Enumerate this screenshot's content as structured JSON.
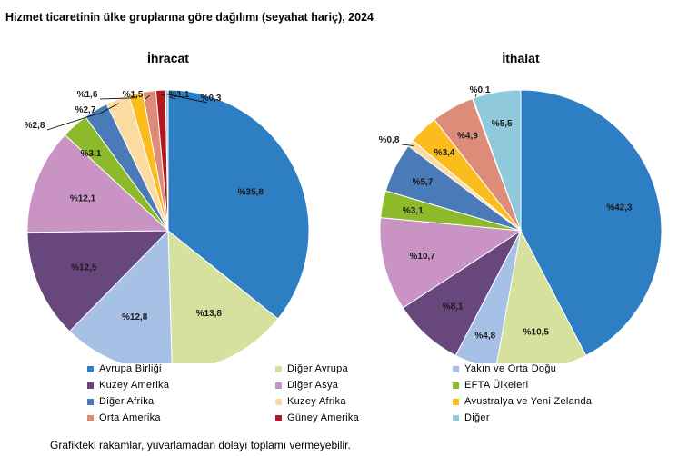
{
  "page_title": "Hizmet ticaretinin ülke gruplarına göre dağılımı (seyahat hariç), 2024",
  "footnote": "Grafikteki rakamlar, yuvarlamadan dolayı toplamı vermeyebilir.",
  "legend": [
    {
      "label": "Avrupa Birliği",
      "color": "#2e7ec4"
    },
    {
      "label": "Diğer Avrupa",
      "color": "#d5e19c"
    },
    {
      "label": "Yakın ve Orta Doğu",
      "color": "#a7c0e5"
    },
    {
      "label": "Kuzey Amerika",
      "color": "#67477c"
    },
    {
      "label": "Diğer Asya",
      "color": "#c994c4"
    },
    {
      "label": "EFTA Ülkeleri",
      "color": "#8dba2a"
    },
    {
      "label": "Diğer Afrika",
      "color": "#4b7ab8"
    },
    {
      "label": "Kuzey Afrika",
      "color": "#fbdba1"
    },
    {
      "label": "Avustralya ve Yeni Zelanda",
      "color": "#fbbc1e"
    },
    {
      "label": "Orta Amerika",
      "color": "#de8c7a"
    },
    {
      "label": "Güney Amerika",
      "color": "#b0191f"
    },
    {
      "label": "Diğer",
      "color": "#91c9dc"
    }
  ],
  "chart_data": [
    {
      "type": "pie",
      "title": "İhracat",
      "slices": [
        {
          "category": "Avrupa Birliği",
          "value": 35.8,
          "label": "%35,8"
        },
        {
          "category": "Diğer Avrupa",
          "value": 13.8,
          "label": "%13,8"
        },
        {
          "category": "Yakın ve Orta Doğu",
          "value": 12.8,
          "label": "%12,8"
        },
        {
          "category": "Kuzey Amerika",
          "value": 12.5,
          "label": "%12,5"
        },
        {
          "category": "Diğer Asya",
          "value": 12.1,
          "label": "%12,1"
        },
        {
          "category": "EFTA Ülkeleri",
          "value": 3.1,
          "label": "%3,1"
        },
        {
          "category": "Diğer Afrika",
          "value": 2.8,
          "label": "%2,8"
        },
        {
          "category": "Kuzey Afrika",
          "value": 2.7,
          "label": "%2,7"
        },
        {
          "category": "Avustralya ve Yeni Zelanda",
          "value": 1.6,
          "label": "%1,6"
        },
        {
          "category": "Orta Amerika",
          "value": 1.5,
          "label": "%1,5"
        },
        {
          "category": "Güney Amerika",
          "value": 1.1,
          "label": "%1,1"
        },
        {
          "category": "Diğer",
          "value": 0.3,
          "label": "%0,3"
        }
      ]
    },
    {
      "type": "pie",
      "title": "İthalat",
      "slices": [
        {
          "category": "Avrupa Birliği",
          "value": 42.3,
          "label": "%42,3"
        },
        {
          "category": "Diğer Avrupa",
          "value": 10.5,
          "label": "%10,5"
        },
        {
          "category": "Yakın ve Orta Doğu",
          "value": 4.8,
          "label": "%4,8"
        },
        {
          "category": "Kuzey Amerika",
          "value": 8.1,
          "label": "%8,1"
        },
        {
          "category": "Diğer Asya",
          "value": 10.7,
          "label": "%10,7"
        },
        {
          "category": "EFTA Ülkeleri",
          "value": 3.1,
          "label": "%3,1"
        },
        {
          "category": "Diğer Afrika",
          "value": 5.7,
          "label": "%5,7"
        },
        {
          "category": "Kuzey Afrika",
          "value": 0.8,
          "label": "%0,8"
        },
        {
          "category": "Avustralya ve Yeni Zelanda",
          "value": 3.4,
          "label": "%3,4"
        },
        {
          "category": "Orta Amerika",
          "value": 4.9,
          "label": "%4,9"
        },
        {
          "category": "Güney Amerika",
          "value": 0.1,
          "label": "%0,1"
        },
        {
          "category": "Diğer",
          "value": 5.5,
          "label": "%5,5"
        }
      ]
    }
  ]
}
